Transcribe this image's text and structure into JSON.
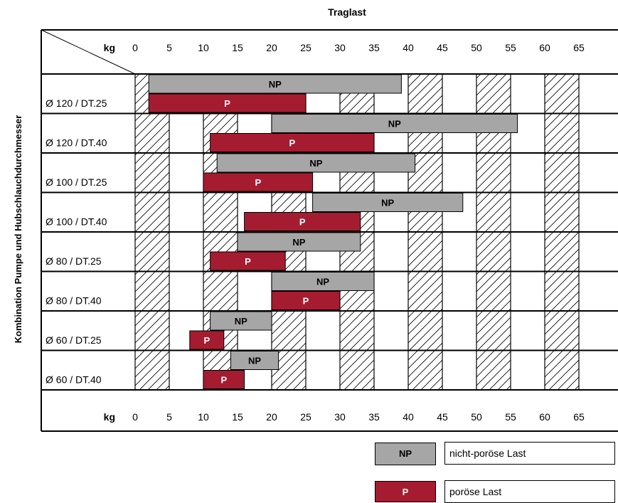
{
  "chart_data": {
    "type": "bar",
    "subtype": "floating-range",
    "title": "Traglast",
    "ylabel": "Kombination Pumpe und Hubschlauchdurchmesser",
    "unit_label": "kg",
    "x_ticks": [
      "0",
      "5",
      "10",
      "15",
      "20",
      "25",
      "30",
      "35",
      "40",
      "45",
      "50",
      "55",
      "60",
      "65"
    ],
    "xlim": [
      0,
      65
    ],
    "categories": [
      "Ø 120 / DT.25",
      "Ø 120 / DT.40",
      "Ø 100 / DT.25",
      "Ø 100 / DT.40",
      "Ø 80 / DT.25",
      "Ø 80 / DT.40",
      "Ø 60 / DT.25",
      "Ø 60 / DT.40"
    ],
    "series": [
      {
        "name": "NP",
        "label": "NP",
        "color": "#a6a6a6",
        "text_color": "#000000",
        "ranges": [
          [
            2,
            39
          ],
          [
            20,
            56
          ],
          [
            12,
            41
          ],
          [
            26,
            48
          ],
          [
            15,
            33
          ],
          [
            20,
            35
          ],
          [
            11,
            20
          ],
          [
            14,
            21
          ]
        ]
      },
      {
        "name": "P",
        "label": "P",
        "color": "#a51c30",
        "text_color": "#ffffff",
        "ranges": [
          [
            2,
            25
          ],
          [
            11,
            35
          ],
          [
            10,
            26
          ],
          [
            16,
            33
          ],
          [
            11,
            22
          ],
          [
            20,
            30
          ],
          [
            8,
            13
          ],
          [
            10,
            16
          ]
        ]
      }
    ],
    "hatched_bands": [
      [
        0,
        5
      ],
      [
        10,
        15
      ],
      [
        20,
        25
      ],
      [
        30,
        35
      ],
      [
        40,
        45
      ],
      [
        50,
        55
      ],
      [
        60,
        65
      ]
    ],
    "legend": [
      {
        "swatch": "NP",
        "text": "nicht-poröse Last",
        "color": "#a6a6a6",
        "text_color": "#000000"
      },
      {
        "swatch": "P",
        "text": "poröse Last",
        "color": "#a51c30",
        "text_color": "#ffffff"
      }
    ],
    "legend_position": "bottom-right"
  }
}
